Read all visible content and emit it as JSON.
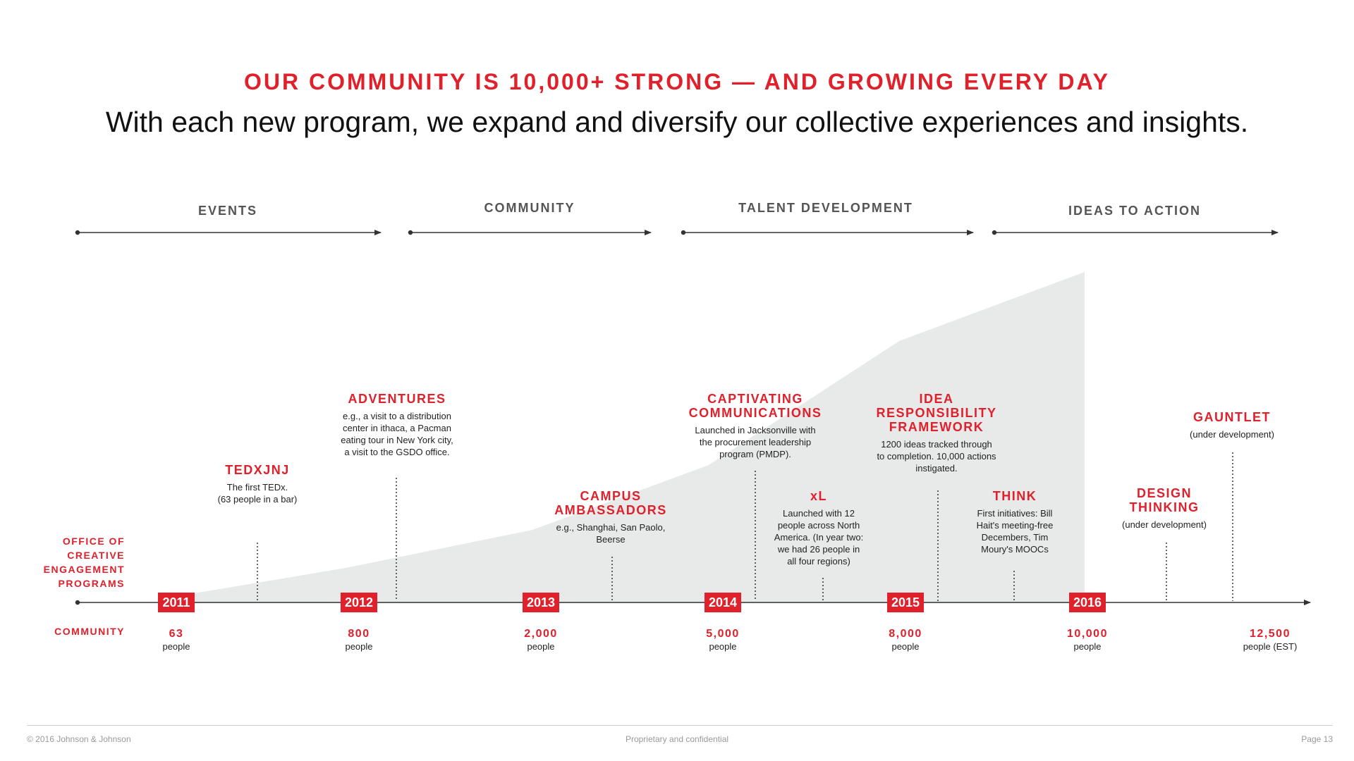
{
  "header": {
    "headline": "OUR COMMUNITY IS 10,000+ STRONG — AND GROWING EVERY DAY",
    "subheadline": "With each new program, we expand and diversify our collective experiences and insights."
  },
  "phases": [
    {
      "label": "EVENTS"
    },
    {
      "label": "COMMUNITY"
    },
    {
      "label": "TALENT DEVELOPMENT"
    },
    {
      "label": "IDEAS TO ACTION"
    }
  ],
  "row_labels": {
    "programs": [
      "OFFICE OF",
      "CREATIVE",
      "ENGAGEMENT",
      "PROGRAMS"
    ],
    "community": "COMMUNITY"
  },
  "years": [
    "2011",
    "2012",
    "2013",
    "2014",
    "2015",
    "2016"
  ],
  "counts": [
    {
      "value": "63",
      "unit": "people"
    },
    {
      "value": "800",
      "unit": "people"
    },
    {
      "value": "2,000",
      "unit": "people"
    },
    {
      "value": "5,000",
      "unit": "people"
    },
    {
      "value": "8,000",
      "unit": "people"
    },
    {
      "value": "10,000",
      "unit": "people"
    },
    {
      "value": "12,500",
      "unit": "people (EST)"
    }
  ],
  "programs": [
    {
      "title": [
        "TEDXJNJ"
      ],
      "desc": [
        "The first TEDx.",
        "(63 people in a bar)"
      ]
    },
    {
      "title": [
        "ADVENTURES"
      ],
      "desc": [
        "e.g., a visit to a distribution",
        "center in ithaca, a Pacman",
        "eating tour in New York city,",
        "a visit to the GSDO office."
      ]
    },
    {
      "title": [
        "CAMPUS",
        "AMBASSADORS"
      ],
      "desc": [
        "e.g., Shanghai, San Paolo,",
        "Beerse"
      ]
    },
    {
      "title": [
        "CAPTIVATING",
        "COMMUNICATIONS"
      ],
      "desc": [
        "Launched in Jacksonville with",
        "the procurement leadership",
        "program (PMDP)."
      ]
    },
    {
      "title": [
        "xL"
      ],
      "desc": [
        "Launched with 12",
        "people across North",
        "America. (In year two:",
        "we had 26 people in",
        "all four regions)"
      ]
    },
    {
      "title": [
        "IDEA",
        "RESPONSIBILITY",
        "FRAMEWORK"
      ],
      "desc": [
        "1200 ideas tracked through",
        "to completion. 10,000 actions",
        "instigated."
      ]
    },
    {
      "title": [
        "THINK"
      ],
      "desc": [
        "First initiatives: Bill",
        "Hait's meeting-free",
        "Decembers, Tim",
        "Moury's MOOCs"
      ]
    },
    {
      "title": [
        "DESIGN",
        "THINKING"
      ],
      "desc": [
        "(under development)"
      ]
    },
    {
      "title": [
        "GAUNTLET"
      ],
      "desc": [
        "(under development)"
      ]
    }
  ],
  "colors": {
    "accent": "#e0202b",
    "area": "#e8e9e9",
    "text": "#222222"
  },
  "footer": {
    "left": "© 2016 Johnson & Johnson",
    "center": "Proprietary and confidential",
    "right": "Page 13"
  }
}
